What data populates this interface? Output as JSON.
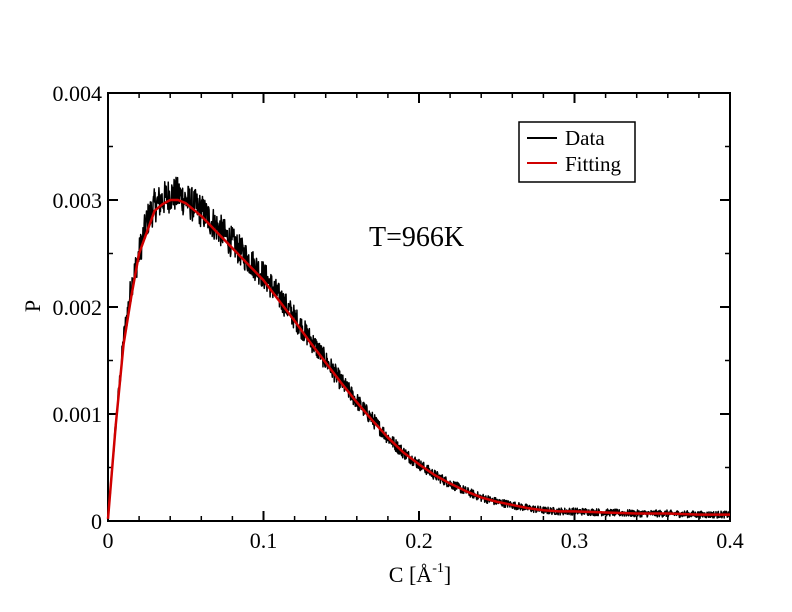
{
  "chart_data": {
    "type": "line",
    "xlabel": "C [Å",
    "xlabel_sup": "-1",
    "xlabel_close": "]",
    "ylabel": "P",
    "xlim": [
      0,
      0.4
    ],
    "ylim": [
      0,
      0.004
    ],
    "xticks": [
      "0",
      "0.1",
      "0.2",
      "0.3",
      "0.4"
    ],
    "yticks": [
      "0",
      "0.001",
      "0.002",
      "0.003",
      "0.004"
    ],
    "annotation": "T=966K",
    "legend_position": "top-right",
    "series": [
      {
        "name": "Data",
        "color": "#000000",
        "style": "noisy",
        "x": [
          0,
          0.005,
          0.01,
          0.015,
          0.02,
          0.025,
          0.03,
          0.035,
          0.04,
          0.045,
          0.05,
          0.06,
          0.07,
          0.08,
          0.09,
          0.1,
          0.11,
          0.12,
          0.13,
          0.14,
          0.15,
          0.16,
          0.17,
          0.18,
          0.19,
          0.2,
          0.21,
          0.22,
          0.23,
          0.24,
          0.25,
          0.26,
          0.27,
          0.28,
          0.29,
          0.3,
          0.32,
          0.34,
          0.36,
          0.38,
          0.4
        ],
        "y": [
          2e-05,
          0.0009,
          0.0017,
          0.0022,
          0.0025,
          0.0028,
          0.00295,
          0.003,
          0.00305,
          0.00305,
          0.003,
          0.0029,
          0.00275,
          0.0026,
          0.00245,
          0.0023,
          0.0021,
          0.0019,
          0.0017,
          0.0015,
          0.0013,
          0.00112,
          0.00095,
          0.00078,
          0.00064,
          0.00053,
          0.00043,
          0.00035,
          0.00028,
          0.00022,
          0.00018,
          0.00015,
          0.00012,
          0.0001,
          9e-05,
          9e-05,
          8e-05,
          7e-05,
          7e-05,
          6e-05,
          6e-05
        ]
      },
      {
        "name": "Fitting",
        "color": "#d00000",
        "style": "smooth",
        "x": [
          0,
          0.005,
          0.01,
          0.015,
          0.02,
          0.025,
          0.03,
          0.035,
          0.04,
          0.045,
          0.05,
          0.06,
          0.07,
          0.08,
          0.09,
          0.1,
          0.11,
          0.12,
          0.13,
          0.14,
          0.15,
          0.16,
          0.17,
          0.18,
          0.19,
          0.2,
          0.21,
          0.22,
          0.23,
          0.24,
          0.25,
          0.26,
          0.27,
          0.28,
          0.29,
          0.3,
          0.32,
          0.34,
          0.36,
          0.38,
          0.4
        ],
        "y": [
          2e-05,
          0.0009,
          0.00165,
          0.0021,
          0.0025,
          0.0027,
          0.0029,
          0.00296,
          0.003,
          0.003,
          0.00297,
          0.00285,
          0.0027,
          0.00255,
          0.0024,
          0.00225,
          0.00206,
          0.00187,
          0.00167,
          0.00148,
          0.00129,
          0.00111,
          0.00094,
          0.00078,
          0.00064,
          0.00053,
          0.00043,
          0.00035,
          0.00028,
          0.00022,
          0.00018,
          0.00015,
          0.00012,
          0.0001,
          9e-05,
          9e-05,
          8e-05,
          7e-05,
          7e-05,
          6e-05,
          6e-05
        ]
      }
    ]
  }
}
